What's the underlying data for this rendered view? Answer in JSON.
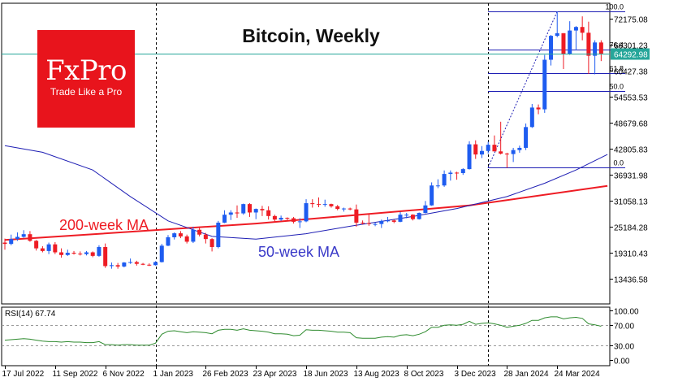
{
  "chart_data": {
    "type": "candlestick",
    "title": "Bitcoin, Weekly",
    "price_axis": {
      "ticks": [
        13436.58,
        19310.43,
        25184.28,
        31058.13,
        36931.98,
        42805.83,
        48679.68,
        54553.53,
        60427.38,
        66301.23,
        72175.08
      ],
      "current_price": "64292.98"
    },
    "time_axis": {
      "labels": [
        "17 Jul 2022",
        "11 Sep 2022",
        "6 Nov 2022",
        "1 Jan 2023",
        "26 Feb 2023",
        "23 Apr 2023",
        "18 Jun 2023",
        "13 Aug 2023",
        "8 Oct 2023",
        "3 Dec 2023",
        "28 Jan 2024",
        "24 Mar 2024"
      ],
      "label_index": [
        0,
        8,
        16,
        24,
        32,
        40,
        48,
        56,
        64,
        72,
        80,
        88
      ],
      "separator_index": [
        24,
        77
      ]
    },
    "candles": [
      [
        21600,
        22500,
        20000,
        21300
      ],
      [
        21300,
        23400,
        21000,
        22400
      ],
      [
        22400,
        23900,
        22000,
        22900
      ],
      [
        22900,
        24400,
        22700,
        23500
      ],
      [
        23500,
        24200,
        21800,
        22000
      ],
      [
        22000,
        22200,
        19800,
        20300
      ],
      [
        20300,
        20800,
        19400,
        19700
      ],
      [
        19700,
        21600,
        19000,
        21200
      ],
      [
        21200,
        21700,
        19000,
        19400
      ],
      [
        19400,
        20300,
        18200,
        18800
      ],
      [
        18800,
        20000,
        18600,
        19300
      ],
      [
        19300,
        19700,
        18900,
        19100
      ],
      [
        19100,
        19600,
        18700,
        19000
      ],
      [
        19000,
        19700,
        18700,
        19400
      ],
      [
        19400,
        19600,
        18300,
        18600
      ],
      [
        18600,
        21000,
        18400,
        20600
      ],
      [
        20600,
        21400,
        15900,
        16300
      ],
      [
        16300,
        17100,
        15700,
        16500
      ],
      [
        16500,
        17000,
        15700,
        16200
      ],
      [
        16200,
        17200,
        16000,
        17100
      ],
      [
        17100,
        18000,
        16800,
        17200
      ],
      [
        17200,
        17500,
        16400,
        16800
      ],
      [
        16800,
        17000,
        16500,
        16600
      ],
      [
        16600,
        16900,
        16300,
        16500
      ],
      [
        16500,
        17400,
        16400,
        17200
      ],
      [
        17200,
        21300,
        17100,
        20900
      ],
      [
        20900,
        23300,
        20800,
        22800
      ],
      [
        22800,
        23900,
        22300,
        23700
      ],
      [
        23700,
        24200,
        22600,
        23000
      ],
      [
        23000,
        23400,
        21400,
        21800
      ],
      [
        21800,
        25200,
        21500,
        24500
      ],
      [
        24500,
        25200,
        23000,
        23400
      ],
      [
        23400,
        23800,
        21400,
        22400
      ],
      [
        22400,
        22600,
        19600,
        20600
      ],
      [
        20600,
        26500,
        20300,
        26100
      ],
      [
        26100,
        28900,
        26000,
        27900
      ],
      [
        27900,
        28900,
        26700,
        28400
      ],
      [
        28400,
        30000,
        27200,
        28200
      ],
      [
        28200,
        30400,
        27900,
        30300
      ],
      [
        30300,
        30500,
        27400,
        28400
      ],
      [
        28400,
        29300,
        26900,
        29200
      ],
      [
        29200,
        29900,
        27600,
        28900
      ],
      [
        28900,
        29800,
        26800,
        27600
      ],
      [
        27600,
        27900,
        26300,
        26800
      ],
      [
        26800,
        27700,
        26500,
        27200
      ],
      [
        27200,
        27300,
        26500,
        27100
      ],
      [
        27100,
        27400,
        25900,
        26300
      ],
      [
        26300,
        27100,
        24900,
        26400
      ],
      [
        26400,
        31400,
        26200,
        30500
      ],
      [
        30500,
        31400,
        29500,
        30300
      ],
      [
        30300,
        31800,
        29600,
        30200
      ],
      [
        30200,
        31300,
        29700,
        30300
      ],
      [
        30300,
        30400,
        29500,
        29800
      ],
      [
        29800,
        30100,
        28900,
        29200
      ],
      [
        29200,
        29500,
        28600,
        29300
      ],
      [
        29300,
        29500,
        28900,
        29100
      ],
      [
        29100,
        30200,
        25200,
        26100
      ],
      [
        26100,
        26600,
        25700,
        26000
      ],
      [
        26000,
        28100,
        25400,
        25800
      ],
      [
        25800,
        26100,
        25300,
        25800
      ],
      [
        25800,
        26800,
        24900,
        26500
      ],
      [
        26500,
        27400,
        26200,
        26600
      ],
      [
        26600,
        26800,
        26000,
        26300
      ],
      [
        26300,
        28500,
        26200,
        27900
      ],
      [
        27900,
        28300,
        27100,
        27900
      ],
      [
        27900,
        28000,
        26600,
        26900
      ],
      [
        26900,
        28400,
        26800,
        28300
      ],
      [
        28300,
        31000,
        28200,
        30000
      ],
      [
        30000,
        35200,
        29900,
        34500
      ],
      [
        34500,
        35900,
        33900,
        34500
      ],
      [
        34500,
        37900,
        34200,
        37100
      ],
      [
        37100,
        37900,
        35600,
        37400
      ],
      [
        37400,
        37600,
        35800,
        37300
      ],
      [
        37300,
        38400,
        36900,
        38200
      ],
      [
        38200,
        44500,
        38100,
        43800
      ],
      [
        43800,
        44700,
        40500,
        41500
      ],
      [
        41500,
        43400,
        40700,
        42300
      ],
      [
        42300,
        44400,
        41700,
        43700
      ],
      [
        43700,
        45800,
        42300,
        42200
      ],
      [
        42200,
        48900,
        41500,
        41700
      ],
      [
        41700,
        41900,
        38500,
        41600
      ],
      [
        41600,
        43000,
        39800,
        42500
      ],
      [
        42500,
        43500,
        41900,
        43000
      ],
      [
        43000,
        48500,
        42500,
        47700
      ],
      [
        47700,
        52900,
        47500,
        52100
      ],
      [
        52100,
        52800,
        50600,
        51700
      ],
      [
        51700,
        64000,
        50900,
        62900
      ],
      [
        62900,
        68500,
        61600,
        68300
      ],
      [
        68300,
        73800,
        68000,
        68900
      ],
      [
        68900,
        68900,
        60800,
        64100
      ],
      [
        64100,
        71600,
        64000,
        69500
      ],
      [
        69500,
        70500,
        65000,
        70300
      ],
      [
        70300,
        72700,
        67300,
        69000
      ],
      [
        69000,
        71500,
        59700,
        63800
      ],
      [
        63800,
        67300,
        59600,
        66800
      ],
      [
        66800,
        67300,
        62600,
        64293
      ]
    ],
    "ma_series": [
      {
        "name": "200-week MA",
        "color": "#ee1c24",
        "points": [
          [
            0,
            22200
          ],
          [
            40,
            25900
          ],
          [
            74,
            30000
          ],
          [
            96,
            34400
          ]
        ]
      },
      {
        "name": "50-week MA",
        "color": "#1e1eb4",
        "points": [
          [
            0,
            43500
          ],
          [
            6,
            42000
          ],
          [
            14,
            38000
          ],
          [
            20,
            32000
          ],
          [
            26,
            26500
          ],
          [
            33,
            23000
          ],
          [
            40,
            22400
          ],
          [
            48,
            23600
          ],
          [
            55,
            25300
          ],
          [
            65,
            27500
          ],
          [
            72,
            29300
          ],
          [
            80,
            32000
          ],
          [
            86,
            35000
          ],
          [
            91,
            38000
          ],
          [
            96,
            41500
          ]
        ]
      }
    ],
    "fibonacci": {
      "levels": [
        {
          "label": "100.0",
          "value": 73800
        },
        {
          "label": "76.4",
          "value": 65200
        },
        {
          "label": "61.8",
          "value": 59800
        },
        {
          "label": "50.0",
          "value": 55900
        },
        {
          "label": "0.0",
          "value": 38500
        }
      ],
      "start_index": 77,
      "end_index": 96
    },
    "rsi": {
      "label": "RSI(14) 67.74",
      "levels": [
        0,
        30,
        70,
        100
      ],
      "level_labels": [
        "0.00",
        "30.00",
        "70.00",
        "100.00"
      ],
      "values": [
        40,
        41,
        42,
        43,
        42,
        40,
        38,
        37,
        37,
        36,
        37,
        36,
        36,
        35,
        35,
        37,
        31,
        31,
        30,
        31,
        31,
        30,
        30,
        30,
        34,
        52,
        58,
        59,
        57,
        55,
        57,
        56,
        55,
        53,
        60,
        62,
        62,
        60,
        63,
        60,
        59,
        58,
        56,
        53,
        53,
        52,
        49,
        50,
        61,
        60,
        60,
        59,
        58,
        56,
        56,
        55,
        45,
        44,
        44,
        44,
        46,
        47,
        46,
        50,
        51,
        49,
        52,
        57,
        66,
        66,
        70,
        71,
        70,
        72,
        78,
        72,
        74,
        75,
        73,
        70,
        66,
        68,
        70,
        74,
        80,
        80,
        85,
        87,
        87,
        83,
        85,
        86,
        84,
        73,
        71,
        68
      ]
    },
    "colors": {
      "bull": "#1e5cf0",
      "bear": "#ee1c24",
      "price_line": "#26a69a",
      "fib": "#1e1eb4",
      "rsi": "#2e8b2e"
    }
  },
  "labels": {
    "ma200": "200-week MA",
    "ma50": "50-week MA"
  },
  "logo": {
    "name": "FxPro",
    "tagline": "Trade Like a Pro"
  }
}
